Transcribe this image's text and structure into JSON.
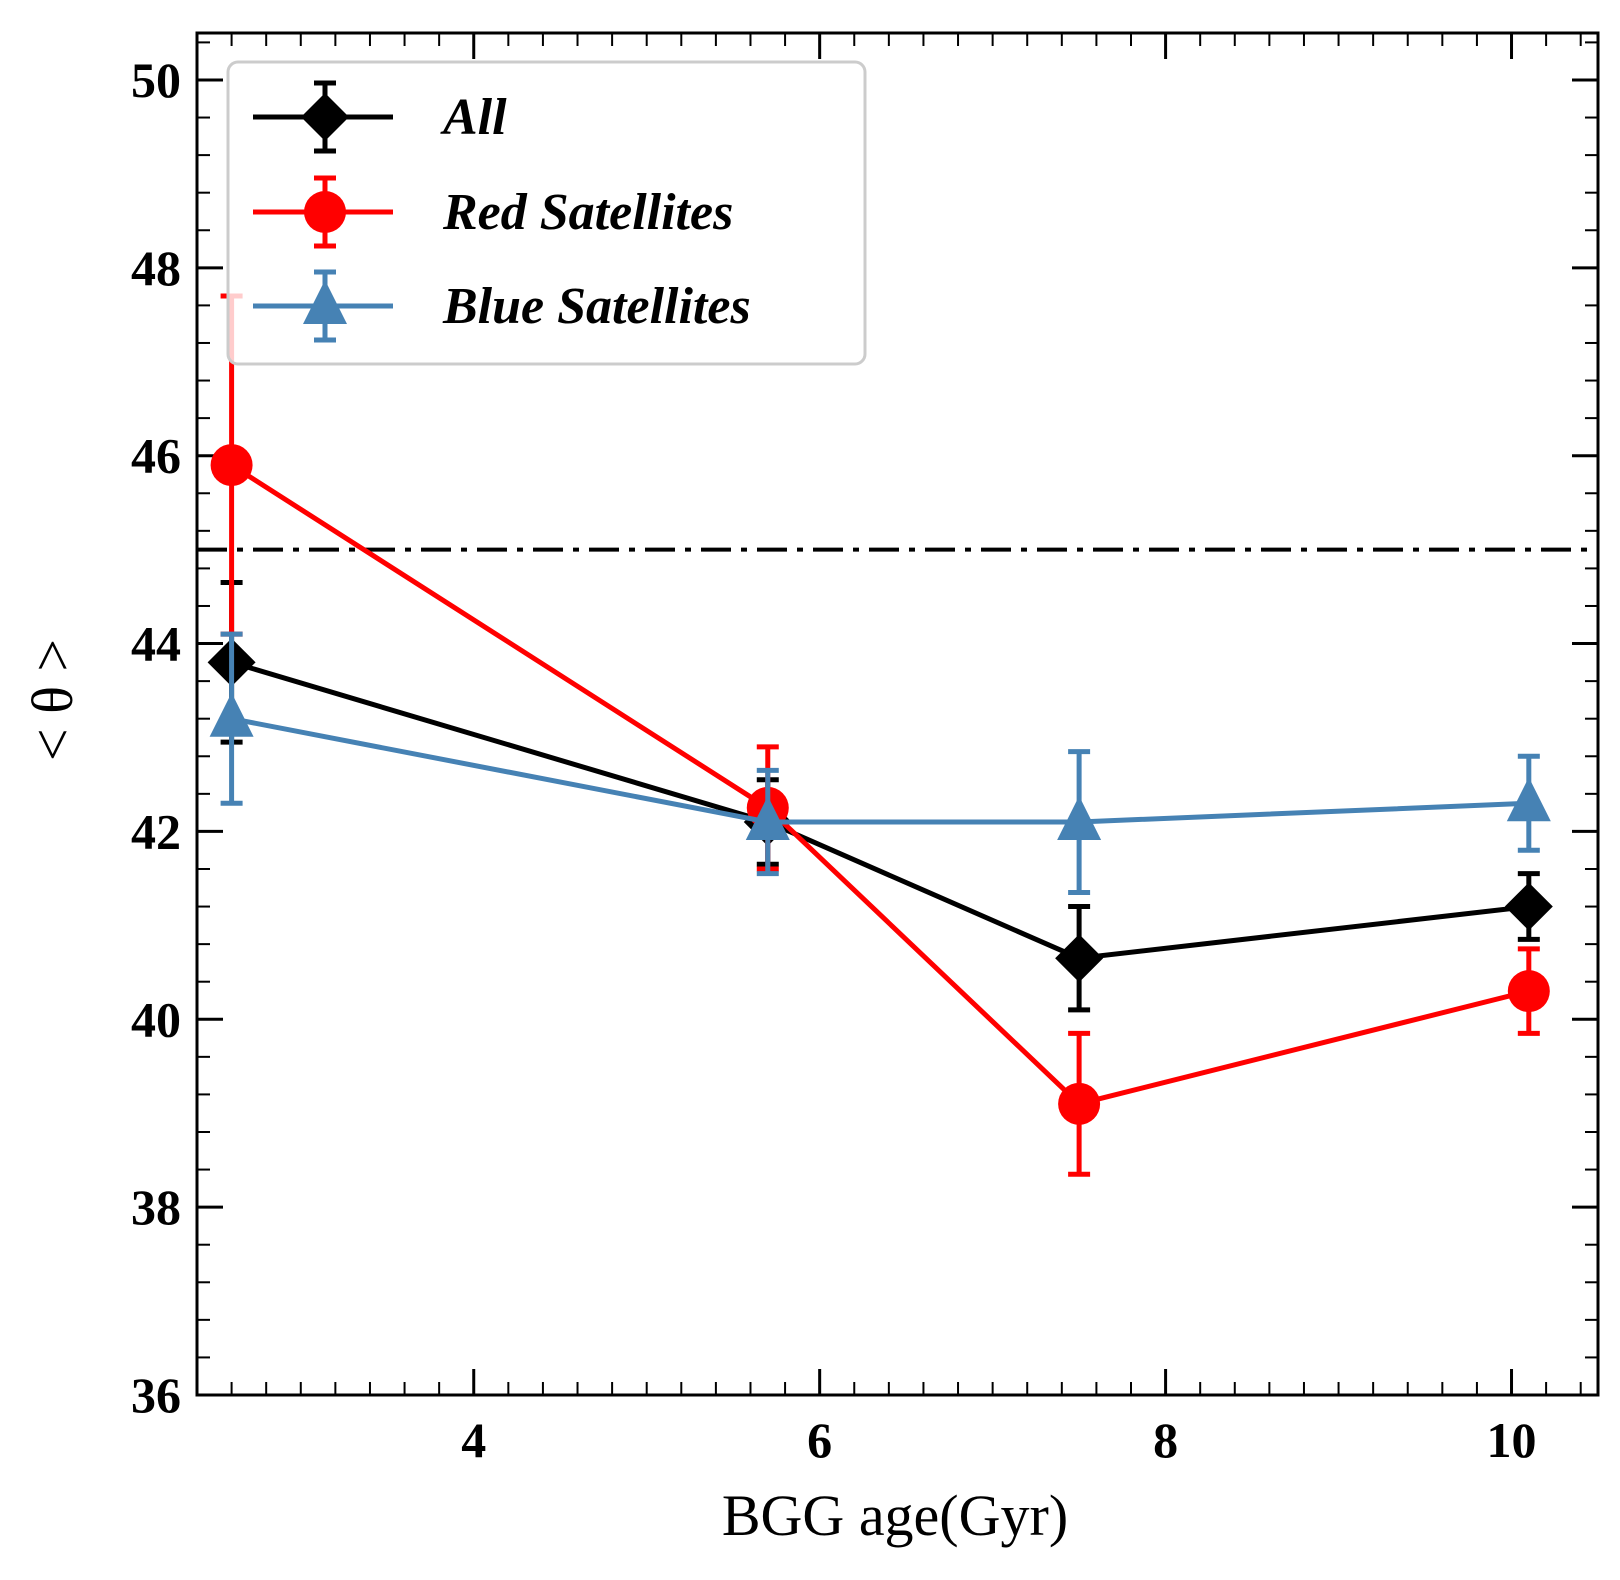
{
  "chart_data": {
    "type": "line",
    "xlabel": "BGG age(Gyr)",
    "ylabel": "< θ >",
    "xlim": [
      2.4,
      10.5
    ],
    "ylim": [
      36,
      50.5
    ],
    "xticks": [
      4,
      6,
      8,
      10
    ],
    "yticks": [
      36,
      38,
      40,
      42,
      44,
      46,
      48,
      50
    ],
    "xtick_labels": [
      "4",
      "6",
      "8",
      "10"
    ],
    "ytick_labels": [
      "36",
      "38",
      "40",
      "42",
      "44",
      "46",
      "48",
      "50"
    ],
    "reference_line": {
      "y": 45,
      "style": "dash-dot"
    },
    "legend_position": "top-left",
    "series": [
      {
        "name": "All",
        "color": "#000000",
        "marker": "diamond",
        "x": [
          2.6,
          5.7,
          7.5,
          10.1
        ],
        "y": [
          43.8,
          42.1,
          40.65,
          41.2
        ],
        "err": [
          0.85,
          0.45,
          0.55,
          0.35
        ]
      },
      {
        "name": "Red Satellites",
        "color": "#ff0000",
        "marker": "circle",
        "x": [
          2.6,
          5.7,
          7.5,
          10.1
        ],
        "y": [
          45.9,
          42.25,
          39.1,
          40.3
        ],
        "err": [
          1.8,
          0.65,
          0.75,
          0.45
        ]
      },
      {
        "name": "Blue Satellites",
        "color": "#4682b4",
        "marker": "triangle",
        "x": [
          2.6,
          5.7,
          7.5,
          10.1
        ],
        "y": [
          43.2,
          42.1,
          42.1,
          42.3
        ],
        "err": [
          0.9,
          0.55,
          0.75,
          0.5
        ]
      }
    ]
  }
}
